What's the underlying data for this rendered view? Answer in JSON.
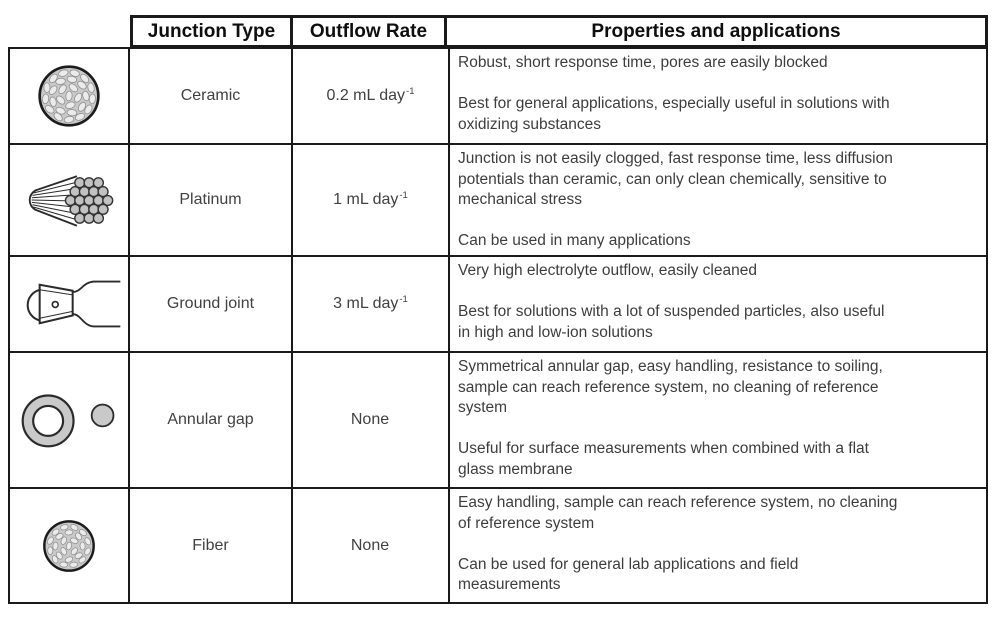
{
  "header": {
    "columns": [
      "Junction Type",
      "Outflow Rate",
      "Properties and applications"
    ]
  },
  "rows": [
    {
      "icon": "ceramic-junction-icon",
      "type": "Ceramic",
      "rate": "0.2 mL day",
      "rate_sup": "-1",
      "properties_lines": [
        "Robust, short response time, pores are easily blocked",
        "",
        "Best for general applications, especially useful in solutions with",
        "oxidizing substances"
      ]
    },
    {
      "icon": "platinum-junction-icon",
      "type": "Platinum",
      "rate": "1 mL day",
      "rate_sup": "-1",
      "properties_lines": [
        "Junction is not easily clogged, fast response time, less diffusion",
        "potentials than ceramic, can only clean chemically, sensitive to",
        "mechanical stress",
        "",
        "Can be used in many applications"
      ]
    },
    {
      "icon": "ground-joint-junction-icon",
      "type": "Ground joint",
      "rate": "3 mL day",
      "rate_sup": "-1",
      "properties_lines": [
        "Very high electrolyte outflow, easily cleaned",
        "",
        "Best for solutions with a lot of suspended particles, also useful",
        "in high and low-ion solutions"
      ]
    },
    {
      "icon": "annular-gap-junction-icon",
      "type": "Annular gap",
      "rate": "None",
      "rate_sup": "",
      "properties_lines": [
        "Symmetrical annular gap, easy handling, resistance to soiling,",
        "sample can reach reference system, no cleaning of reference",
        "system",
        "",
        "Useful for surface measurements when combined with a flat",
        "glass membrane"
      ]
    },
    {
      "icon": "fiber-junction-icon",
      "type": "Fiber",
      "rate": "None",
      "rate_sup": "",
      "properties_lines": [
        "Easy handling, sample can reach reference system, no cleaning",
        "of reference system",
        "",
        "Can be used for general lab applications and field",
        "measurements"
      ]
    }
  ],
  "colors": {
    "border": "#1a1a1a",
    "icon_fill": "#c9c9c9",
    "icon_oval": "#ebebeb",
    "icon_stroke": "#2b2b2b"
  }
}
